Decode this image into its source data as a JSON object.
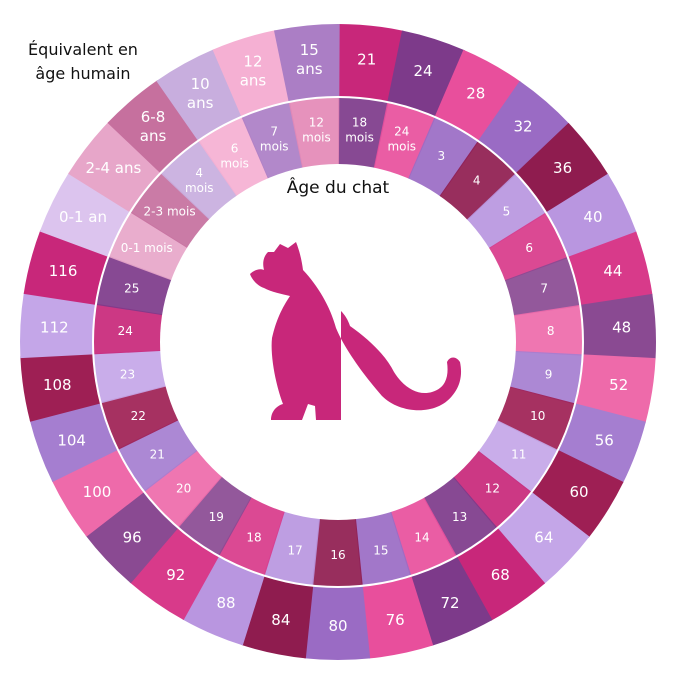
{
  "corner_title": {
    "line1": "Équivalent en",
    "line2": "âge humain"
  },
  "center_label": "Âge du chat",
  "colors": {
    "palette": [
      "#c8277a",
      "#7d3a8a",
      "#e84f9c",
      "#9a6bc4",
      "#8f1c4f",
      "#b996e0",
      "#d83a8a",
      "#8a4a92",
      "#ee6aaa",
      "#a57ed0",
      "#9e1f54",
      "#c4a6e8"
    ],
    "light_palette": [
      "#dcc4ee",
      "#e7a6c9",
      "#c6709e",
      "#c8aede",
      "#f5b0d3",
      "#ab7ec5",
      "#e489b6",
      "#c49ee0",
      "#e08cb8",
      "#bb609a",
      "#b199d8",
      "#f08bbd"
    ],
    "cat": "#c8277a"
  },
  "icon": "cat-silhouette-icon",
  "segments": [
    {
      "outer": [
        "21"
      ],
      "inner": [
        "18",
        "mois"
      ]
    },
    {
      "outer": [
        "24"
      ],
      "inner": [
        "24",
        "mois"
      ]
    },
    {
      "outer": [
        "28"
      ],
      "inner": [
        "3"
      ]
    },
    {
      "outer": [
        "32"
      ],
      "inner": [
        "4"
      ]
    },
    {
      "outer": [
        "36"
      ],
      "inner": [
        "5"
      ]
    },
    {
      "outer": [
        "40"
      ],
      "inner": [
        "6"
      ]
    },
    {
      "outer": [
        "44"
      ],
      "inner": [
        "7"
      ]
    },
    {
      "outer": [
        "48"
      ],
      "inner": [
        "8"
      ]
    },
    {
      "outer": [
        "52"
      ],
      "inner": [
        "9"
      ]
    },
    {
      "outer": [
        "56"
      ],
      "inner": [
        "10"
      ]
    },
    {
      "outer": [
        "60"
      ],
      "inner": [
        "11"
      ]
    },
    {
      "outer": [
        "64"
      ],
      "inner": [
        "12"
      ]
    },
    {
      "outer": [
        "68"
      ],
      "inner": [
        "13"
      ]
    },
    {
      "outer": [
        "72"
      ],
      "inner": [
        "14"
      ]
    },
    {
      "outer": [
        "76"
      ],
      "inner": [
        "15"
      ]
    },
    {
      "outer": [
        "80"
      ],
      "inner": [
        "16"
      ]
    },
    {
      "outer": [
        "84"
      ],
      "inner": [
        "17"
      ]
    },
    {
      "outer": [
        "88"
      ],
      "inner": [
        "18"
      ]
    },
    {
      "outer": [
        "92"
      ],
      "inner": [
        "19"
      ]
    },
    {
      "outer": [
        "96"
      ],
      "inner": [
        "20"
      ]
    },
    {
      "outer": [
        "100"
      ],
      "inner": [
        "21"
      ]
    },
    {
      "outer": [
        "104"
      ],
      "inner": [
        "22"
      ]
    },
    {
      "outer": [
        "108"
      ],
      "inner": [
        "23"
      ]
    },
    {
      "outer": [
        "112"
      ],
      "inner": [
        "24"
      ]
    },
    {
      "outer": [
        "116"
      ],
      "inner": [
        "25"
      ]
    },
    {
      "outer": [
        "0-1 an"
      ],
      "inner": [
        "0-1 mois"
      ]
    },
    {
      "outer": [
        "2-4 ans"
      ],
      "inner": [
        "2-3 mois"
      ]
    },
    {
      "outer": [
        "6-8",
        "ans"
      ],
      "inner": [
        "4",
        "mois"
      ]
    },
    {
      "outer": [
        "10",
        "ans"
      ],
      "inner": [
        "6",
        "mois"
      ]
    },
    {
      "outer": [
        "12",
        "ans"
      ],
      "inner": [
        "7",
        "mois"
      ]
    },
    {
      "outer": [
        "15",
        "ans"
      ],
      "inner": [
        "12",
        "mois"
      ]
    }
  ]
}
